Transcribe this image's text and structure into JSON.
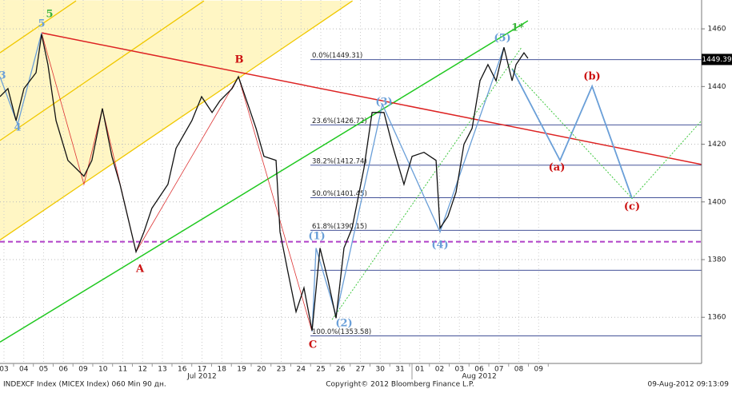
{
  "chart_data": {
    "type": "line",
    "color": "#111111",
    "xlim": [
      -0.2,
      35.23
    ],
    "ylim": [
      1344,
      1470
    ],
    "grid": true,
    "yticks": [
      1360,
      1380,
      1400,
      1420,
      1440,
      1460
    ],
    "xticks": [
      {
        "value": 0,
        "label": "03"
      },
      {
        "value": 1,
        "label": "04"
      },
      {
        "value": 2,
        "label": "05"
      },
      {
        "value": 3,
        "label": "06"
      },
      {
        "value": 4,
        "label": "09"
      },
      {
        "value": 5,
        "label": "10"
      },
      {
        "value": 6,
        "label": "11"
      },
      {
        "value": 7,
        "label": "12"
      },
      {
        "value": 8,
        "label": "13"
      },
      {
        "value": 9,
        "label": "16"
      },
      {
        "value": 10,
        "label": "17"
      },
      {
        "value": 11,
        "label": "18"
      },
      {
        "value": 12,
        "label": "19"
      },
      {
        "value": 13,
        "label": "20"
      },
      {
        "value": 14,
        "label": "23"
      },
      {
        "value": 15,
        "label": "24"
      },
      {
        "value": 16,
        "label": "25"
      },
      {
        "value": 17,
        "label": "26"
      },
      {
        "value": 18,
        "label": "27"
      },
      {
        "value": 19,
        "label": "30"
      },
      {
        "value": 20,
        "label": "31"
      },
      {
        "value": 21,
        "label": "01"
      },
      {
        "value": 22,
        "label": "02"
      },
      {
        "value": 23,
        "label": "03"
      },
      {
        "value": 24,
        "label": "06"
      },
      {
        "value": 25,
        "label": "07"
      },
      {
        "value": 26,
        "label": "08"
      },
      {
        "value": 27,
        "label": "09"
      }
    ],
    "month_labels": [
      {
        "value": 10,
        "label": "Jul 2012"
      },
      {
        "value": 24,
        "label": "Aug 2012"
      }
    ],
    "x": [
      -0.2,
      0.2,
      0.61,
      1.01,
      1.62,
      1.9,
      2.22,
      2.63,
      3.23,
      4.04,
      4.44,
      4.97,
      5.45,
      5.86,
      6.67,
      7.07,
      7.47,
      8.28,
      8.69,
      9.49,
      9.98,
      10.51,
      10.91,
      11.52,
      11.84,
      12.32,
      12.73,
      13.13,
      13.74,
      13.94,
      14.34,
      14.75,
      15.15,
      15.56,
      15.96,
      16.36,
      16.77,
      17.17,
      17.58,
      18.18,
      18.59,
      19.19,
      19.6,
      20.2,
      20.61,
      21.21,
      21.82,
      22.02,
      22.42,
      22.83,
      23.23,
      23.64,
      24.04,
      24.44,
      24.85,
      25.25,
      25.66,
      25.86,
      26.26,
      26.46
    ],
    "values": [
      1436.5,
      1439.3,
      1428.2,
      1439.3,
      1444.8,
      1458.1,
      1447.6,
      1428.2,
      1414.4,
      1408.9,
      1414.4,
      1432.4,
      1415.8,
      1406.1,
      1382.7,
      1389.6,
      1397.8,
      1406.1,
      1418.6,
      1428.2,
      1436.5,
      1431.0,
      1435.1,
      1439.3,
      1443.4,
      1433.8,
      1425.5,
      1415.8,
      1414.4,
      1389.6,
      1375.7,
      1361.9,
      1370.2,
      1355.4,
      1384.0,
      1373.0,
      1359.7,
      1384.0,
      1390.9,
      1411.7,
      1431.0,
      1431.0,
      1420.0,
      1406.1,
      1415.8,
      1417.2,
      1414.4,
      1390.9,
      1395.0,
      1403.4,
      1420.0,
      1425.5,
      1442.0,
      1447.6,
      1442.0,
      1453.6,
      1442.0,
      1447.6,
      1451.7,
      1449.8
    ],
    "last_price": 1449.39,
    "pitchfork": {
      "color": "#f0c800",
      "fill": "#fff6c4",
      "lines": [
        [
          [
            -0.2,
            1386.8
          ],
          [
            17.6,
            1469.7
          ]
        ],
        [
          [
            -0.2,
            1421.3
          ],
          [
            10.1,
            1469.7
          ]
        ],
        [
          [
            -0.2,
            1451.7
          ],
          [
            3.64,
            1469.7
          ]
        ]
      ]
    },
    "fib_color": "#2a3a8a",
    "fib_levels": [
      {
        "value": 1449.31,
        "label": "0.0%(1449.31)"
      },
      {
        "value": 1426.72,
        "label": "23.6%(1426.72)"
      },
      {
        "value": 1412.74,
        "label": "38.2%(1412.74)"
      },
      {
        "value": 1401.45,
        "label": "50.0%(1401.45)"
      },
      {
        "value": 1390.15,
        "label": "61.8%(1390.15)"
      },
      {
        "value": 1353.58,
        "label": "100.0%(1353.58)"
      },
      {
        "value": 1376.3
      }
    ],
    "hline": {
      "value": 1386.2,
      "color": "#b040c8",
      "dash": true
    },
    "overlays": [
      {
        "color": "#20c820",
        "width": 1.5,
        "dash": false,
        "points": [
          [
            -0.2,
            1351.4
          ],
          [
            26.46,
            1462.8
          ]
        ]
      },
      {
        "color": "#dd2222",
        "width": 1.5,
        "dash": false,
        "points": [
          [
            1.9,
            1458.6
          ],
          [
            35.23,
            1413.0
          ]
        ]
      },
      {
        "color": "#dd3333",
        "width": 0.8,
        "dash": false,
        "points": [
          [
            1.9,
            1458.6
          ],
          [
            4.04,
            1406.1
          ],
          [
            4.97,
            1432.4
          ],
          [
            6.67,
            1382.7
          ],
          [
            11.84,
            1443.4
          ],
          [
            15.56,
            1355.0
          ]
        ]
      },
      {
        "color": "#6a9fd8",
        "width": 1.3,
        "dash": false,
        "points": [
          [
            -0.2,
            1443.4
          ],
          [
            0.69,
            1426.9
          ],
          [
            1.9,
            1458.6
          ]
        ]
      },
      {
        "color": "#6a9fd8",
        "width": 1.3,
        "dash": false,
        "points": [
          [
            15.56,
            1355.0
          ],
          [
            15.76,
            1384.0
          ],
          [
            16.77,
            1360.6
          ],
          [
            19.11,
            1433.8
          ],
          [
            22.02,
            1389.6
          ],
          [
            25.25,
            1453.6
          ]
        ]
      },
      {
        "color": "#6a9fd8",
        "width": 1.8,
        "dash": false,
        "points": [
          [
            25.66,
            1446.2
          ],
          [
            28.08,
            1414.4
          ],
          [
            29.7,
            1440.1
          ],
          [
            31.72,
            1401.2
          ]
        ]
      },
      {
        "color": "#40c840",
        "width": 1,
        "dash": true,
        "points": [
          [
            16.57,
            1359.2
          ],
          [
            26.14,
            1453.6
          ]
        ]
      },
      {
        "color": "#40c840",
        "width": 1,
        "dash": true,
        "points": [
          [
            25.66,
            1446.2
          ],
          [
            31.72,
            1401.2
          ],
          [
            35.23,
            1428.2
          ]
        ]
      }
    ],
    "wave_labels": [
      {
        "text": "5",
        "color": "#3cb43c"
      },
      {
        "text": "5",
        "color": "#6a9fd8"
      },
      {
        "text": "3",
        "color": "#6a9fd8"
      },
      {
        "text": "4",
        "color": "#6a9fd8"
      },
      {
        "text": "A",
        "color": "#cc1111"
      },
      {
        "text": "B",
        "color": "#cc1111"
      },
      {
        "text": "C",
        "color": "#cc1111"
      },
      {
        "text": "(1)",
        "color": "#6a9fd8"
      },
      {
        "text": "(2)",
        "color": "#6a9fd8"
      },
      {
        "text": "(3)",
        "color": "#6a9fd8"
      },
      {
        "text": "(4)",
        "color": "#6a9fd8"
      },
      {
        "text": "(5)",
        "color": "#6a9fd8"
      },
      {
        "text": "1*",
        "color": "#3cb43c"
      },
      {
        "text": "(a)",
        "color": "#cc1111"
      },
      {
        "text": "(b)",
        "color": "#cc1111"
      },
      {
        "text": "(c)",
        "color": "#cc1111"
      }
    ],
    "footer": {
      "left": "INDEXCF Index (MICEX Index) 060 Min 90 дн.",
      "center": "Copyright© 2012 Bloomberg Finance L.P.",
      "right": "09-Aug-2012 09:13:09"
    }
  }
}
